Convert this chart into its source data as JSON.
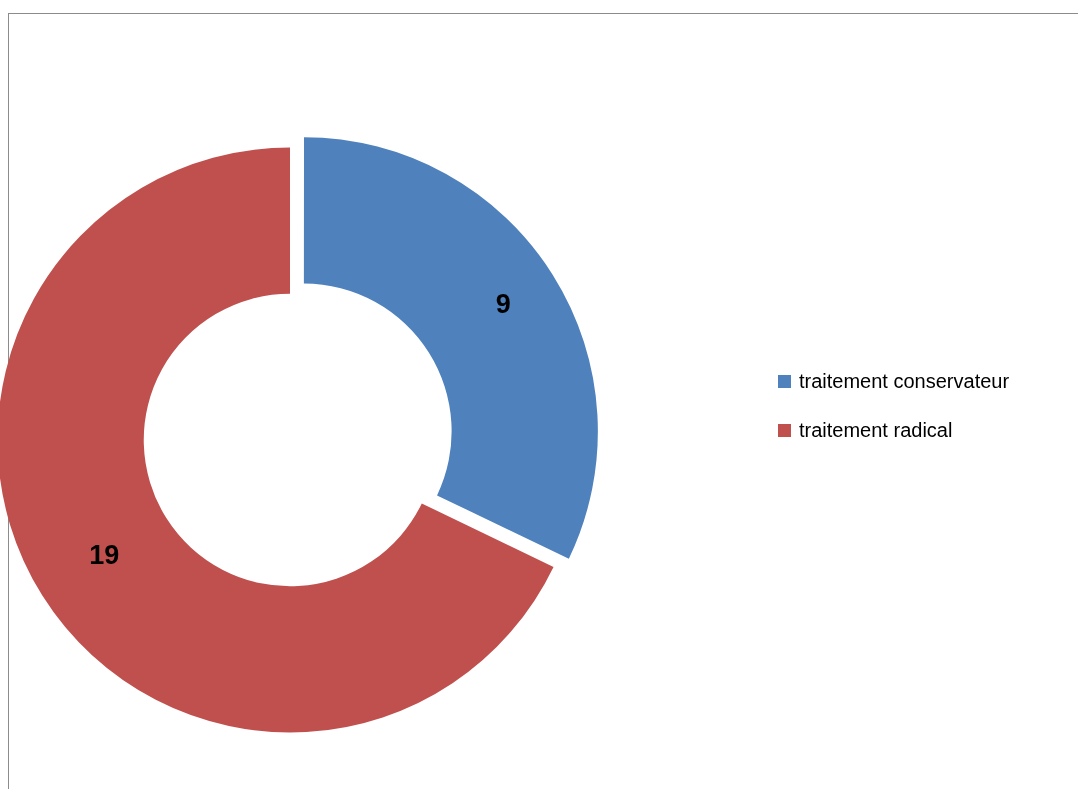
{
  "chart_data": {
    "type": "donut",
    "categories": [
      "traitement conservateur",
      "traitement radical"
    ],
    "values": [
      9,
      19
    ],
    "colors": [
      "#4f81bd",
      "#c0504d"
    ],
    "data_labels": true,
    "legend": "right"
  }
}
